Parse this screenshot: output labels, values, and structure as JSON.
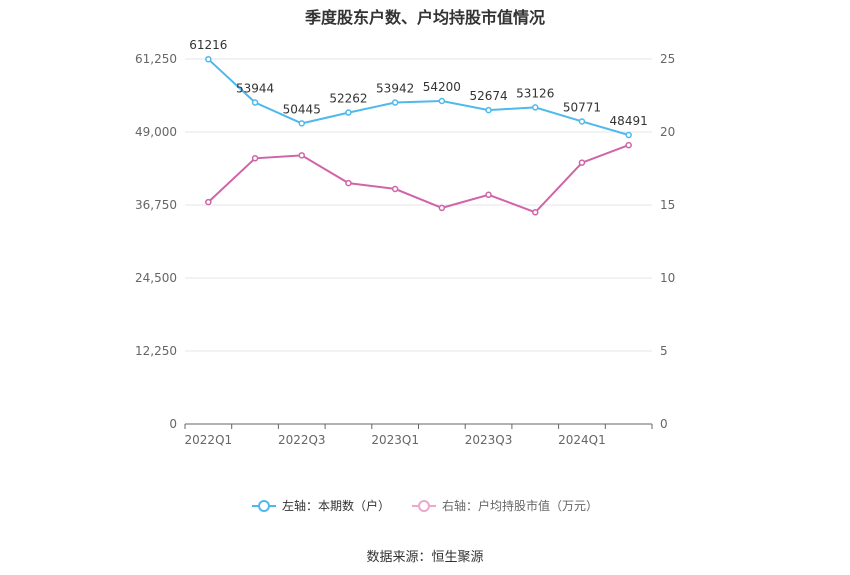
{
  "chart_data": {
    "type": "line",
    "title": "季度股东户数、户均持股市值情况",
    "categories": [
      "2022Q1",
      "2022Q2",
      "2022Q3",
      "2022Q4",
      "2023Q1",
      "2023Q2",
      "2023Q3",
      "2023Q4",
      "2024Q1",
      "2024Q2"
    ],
    "x_tick_labels": [
      "2022Q1",
      "2022Q3",
      "2023Q1",
      "2023Q3",
      "2024Q1"
    ],
    "left_axis": {
      "ticks": [
        "0",
        "12,250",
        "24,500",
        "36,750",
        "49,000",
        "61,250"
      ],
      "ylim": [
        0,
        61250
      ]
    },
    "right_axis": {
      "ticks": [
        "0",
        "5",
        "10",
        "15",
        "20",
        "25"
      ],
      "ylim": [
        0,
        25
      ]
    },
    "series": [
      {
        "name": "左轴：本期数（户）",
        "axis": "left",
        "color": "#4fb9ec",
        "show_labels": true,
        "values": [
          61216,
          53944,
          50445,
          52262,
          53942,
          54200,
          52674,
          53126,
          50771,
          48491
        ]
      },
      {
        "name": "右轴：户均持股市值（万元）",
        "axis": "right",
        "color": "#d064a8",
        "show_labels": false,
        "values": [
          15.2,
          18.2,
          18.4,
          16.5,
          16.1,
          14.8,
          15.7,
          14.5,
          17.9,
          19.1
        ]
      }
    ],
    "grid": true,
    "legend_position": "bottom",
    "source": "数据来源：恒生聚源"
  }
}
